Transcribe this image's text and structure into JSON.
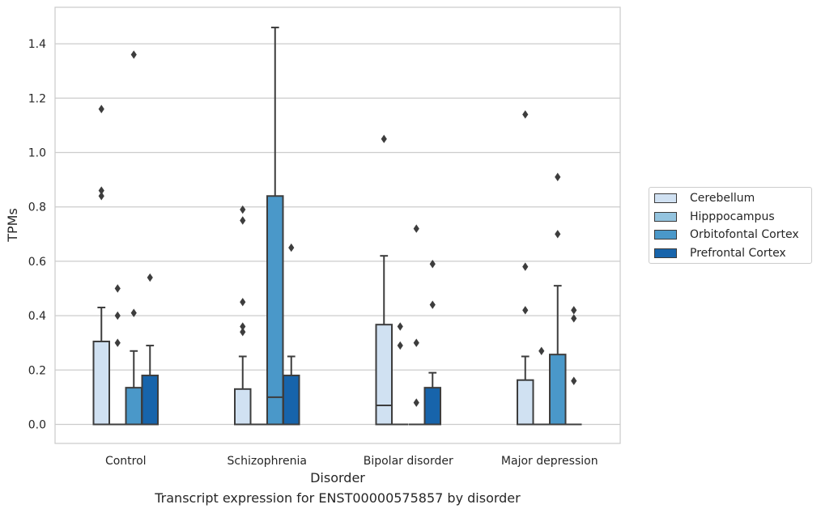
{
  "caption": "Transcript expression for ENST00000575857 by disorder",
  "chart_data": {
    "type": "boxplot",
    "title": "",
    "xlabel": "Disorder",
    "ylabel": "TPMs",
    "ylim": [
      -0.07,
      1.54
    ],
    "yticks": [
      "0.0",
      "0.2",
      "0.4",
      "0.6",
      "0.8",
      "1.0",
      "1.2",
      "1.4"
    ],
    "grid": "horizontal",
    "legend_placement": "outside-right",
    "categories": [
      "Control",
      "Schizophrenia",
      "Bipolar disorder",
      "Major depression"
    ],
    "series": [
      {
        "name": "Cerebellum",
        "color": "#d0e1f2",
        "boxes": [
          {
            "q1": 0.0,
            "median": 0.0,
            "q3": 0.305,
            "whisker_low": 0.0,
            "whisker_high": 0.43,
            "outliers": [
              0.84,
              0.86,
              1.16
            ]
          },
          {
            "q1": 0.0,
            "median": 0.0,
            "q3": 0.13,
            "whisker_low": 0.0,
            "whisker_high": 0.25,
            "outliers": [
              0.34,
              0.36,
              0.45,
              0.75,
              0.79
            ]
          },
          {
            "q1": 0.0,
            "median": 0.07,
            "q3": 0.367,
            "whisker_low": 0.0,
            "whisker_high": 0.62,
            "outliers": [
              1.05
            ]
          },
          {
            "q1": 0.0,
            "median": 0.0,
            "q3": 0.163,
            "whisker_low": 0.0,
            "whisker_high": 0.25,
            "outliers": [
              0.42,
              0.58,
              1.14
            ]
          }
        ]
      },
      {
        "name": "Hipppocampus",
        "color": "#94c4df",
        "boxes": [
          {
            "q1": 0.0,
            "median": 0.0,
            "q3": 0.0,
            "whisker_low": 0.0,
            "whisker_high": 0.0,
            "outliers": [
              0.3,
              0.4,
              0.5
            ]
          },
          {
            "q1": 0.0,
            "median": 0.0,
            "q3": 0.0,
            "whisker_low": 0.0,
            "whisker_high": 0.0,
            "outliers": []
          },
          {
            "q1": 0.0,
            "median": 0.0,
            "q3": 0.0,
            "whisker_low": 0.0,
            "whisker_high": 0.0,
            "outliers": [
              0.29,
              0.36
            ]
          },
          {
            "q1": 0.0,
            "median": 0.0,
            "q3": 0.0,
            "whisker_low": 0.0,
            "whisker_high": 0.0,
            "outliers": [
              0.27
            ]
          }
        ]
      },
      {
        "name": "Orbitofontal Cortex",
        "color": "#4a98c9",
        "boxes": [
          {
            "q1": 0.0,
            "median": 0.0,
            "q3": 0.135,
            "whisker_low": 0.0,
            "whisker_high": 0.27,
            "outliers": [
              0.41,
              1.36
            ]
          },
          {
            "q1": 0.0,
            "median": 0.1,
            "q3": 0.84,
            "whisker_low": 0.0,
            "whisker_high": 1.46,
            "outliers": []
          },
          {
            "q1": 0.0,
            "median": 0.0,
            "q3": 0.0,
            "whisker_low": 0.0,
            "whisker_high": 0.0,
            "outliers": [
              0.08,
              0.3,
              0.72
            ]
          },
          {
            "q1": 0.0,
            "median": 0.0,
            "q3": 0.257,
            "whisker_low": 0.0,
            "whisker_high": 0.51,
            "outliers": [
              0.7,
              0.91
            ]
          }
        ]
      },
      {
        "name": "Prefrontal Cortex",
        "color": "#1764ab",
        "boxes": [
          {
            "q1": 0.0,
            "median": 0.0,
            "q3": 0.18,
            "whisker_low": 0.0,
            "whisker_high": 0.29,
            "outliers": [
              0.54
            ]
          },
          {
            "q1": 0.0,
            "median": 0.0,
            "q3": 0.18,
            "whisker_low": 0.0,
            "whisker_high": 0.25,
            "outliers": [
              0.65
            ]
          },
          {
            "q1": 0.0,
            "median": 0.0,
            "q3": 0.135,
            "whisker_low": 0.0,
            "whisker_high": 0.19,
            "outliers": [
              0.44,
              0.59
            ]
          },
          {
            "q1": 0.0,
            "median": 0.0,
            "q3": 0.0,
            "whisker_low": 0.0,
            "whisker_high": 0.0,
            "outliers": [
              0.16,
              0.39,
              0.42
            ]
          }
        ]
      }
    ]
  }
}
